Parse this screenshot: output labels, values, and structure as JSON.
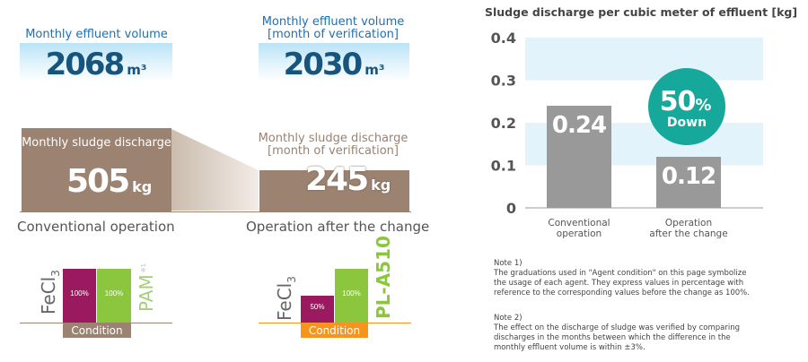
{
  "left": {
    "volume_conventional": {
      "label": "Monthly effluent volume",
      "value": "2068",
      "unit": "m³"
    },
    "volume_after": {
      "label_line1": "Monthly effluent volume",
      "label_line2": "[month of verification]",
      "value": "2030",
      "unit": "m³"
    },
    "sludge_conventional": {
      "label": "Monthly sludge discharge",
      "value": "505",
      "unit": "kg"
    },
    "sludge_after": {
      "label_line1": "Monthly sludge discharge",
      "label_line2": "[month of verification]",
      "value": "245",
      "unit": "kg"
    },
    "operation_conventional": "Conventional operation",
    "operation_after": "Operation after the change"
  },
  "agents": {
    "conventional": {
      "agent1_prefix": "FeCl",
      "agent1_sub": "3",
      "agent2": "PAM",
      "agent2_sup": "※1",
      "bar1_pct": "100%",
      "bar2_pct": "100%",
      "bar1_level": 1.0,
      "bar2_level": 1.0,
      "condition": "Condition",
      "colors": {
        "bar1": "#9b1a5f",
        "bar2": "#8cc63f",
        "condition": "#9b8271"
      }
    },
    "after": {
      "agent1_prefix": "FeCl",
      "agent1_sub": "3",
      "agent2": "PL-A510",
      "bar1_pct": "50%",
      "bar2_pct": "100%",
      "bar1_level": 0.5,
      "bar2_level": 1.0,
      "condition": "Condition",
      "colors": {
        "bar1": "#9b1a5f",
        "bar2": "#8cc63f",
        "condition": "#f7941d"
      }
    }
  },
  "chart_data": {
    "type": "bar",
    "title": "Sludge discharge per cubic meter of effluent [kg]",
    "categories": [
      {
        "line1": "Conventional",
        "line2": "operation"
      },
      {
        "line1": "Operation",
        "line2": "after the change"
      }
    ],
    "values": [
      0.24,
      0.12
    ],
    "value_labels": [
      "0.24",
      "0.12"
    ],
    "ylim": [
      0,
      0.4
    ],
    "yticks": [
      "0",
      "0.1",
      "0.2",
      "0.3",
      "0.4"
    ],
    "grid": "alternating bands",
    "colors": {
      "bar": "#999999",
      "band": "#e3f3fb"
    },
    "badge": {
      "value": "50",
      "pct": "%",
      "text": "Down",
      "color": "#16a89a"
    }
  },
  "notes": [
    {
      "title": "Note 1)",
      "lines": [
        "The graduations used in \"Agent condition\" on this page symbolize",
        "the usage of each agent. They express values in percentage with",
        "reference to the corresponding values before the change as 100%."
      ]
    },
    {
      "title": "Note 2)",
      "lines": [
        "The effect on the discharge of sludge was verified by comparing",
        "discharges in the months between which the difference in the",
        "monthly effluent volume is within ±3%."
      ]
    }
  ]
}
